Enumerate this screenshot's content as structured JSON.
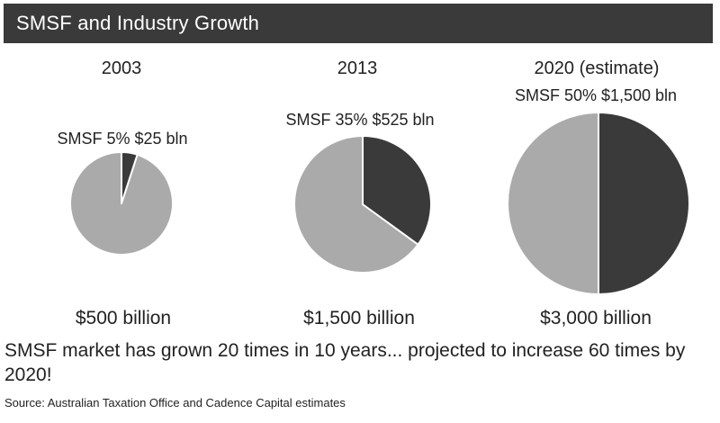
{
  "header": {
    "title": "SMSF and Industry Growth"
  },
  "chart_data": {
    "type": "pie",
    "title": "SMSF and Industry Growth",
    "colors": {
      "smsf": "#3a3a3a",
      "rest": "#aaaaaa",
      "stroke": "#ffffff"
    },
    "pies": [
      {
        "year": "2003",
        "slice_label": "SMSF 5% $25 bln",
        "smsf_percent": 5,
        "smsf_value_bln": 25,
        "total_label": "$500 billion",
        "total_bln": 500
      },
      {
        "year": "2013",
        "slice_label": "SMSF 35% $525 bln",
        "smsf_percent": 35,
        "smsf_value_bln": 525,
        "total_label": "$1,500 billion",
        "total_bln": 1500
      },
      {
        "year": "2020 (estimate)",
        "slice_label": "SMSF 50% $1,500 bln",
        "smsf_percent": 50,
        "smsf_value_bln": 1500,
        "total_label": "$3,000 billion",
        "total_bln": 3000
      }
    ]
  },
  "summary": "SMSF market has grown 20 times in 10 years... projected to increase 60 times by 2020!",
  "source": "Source: Australian Taxation Office and Cadence Capital estimates"
}
